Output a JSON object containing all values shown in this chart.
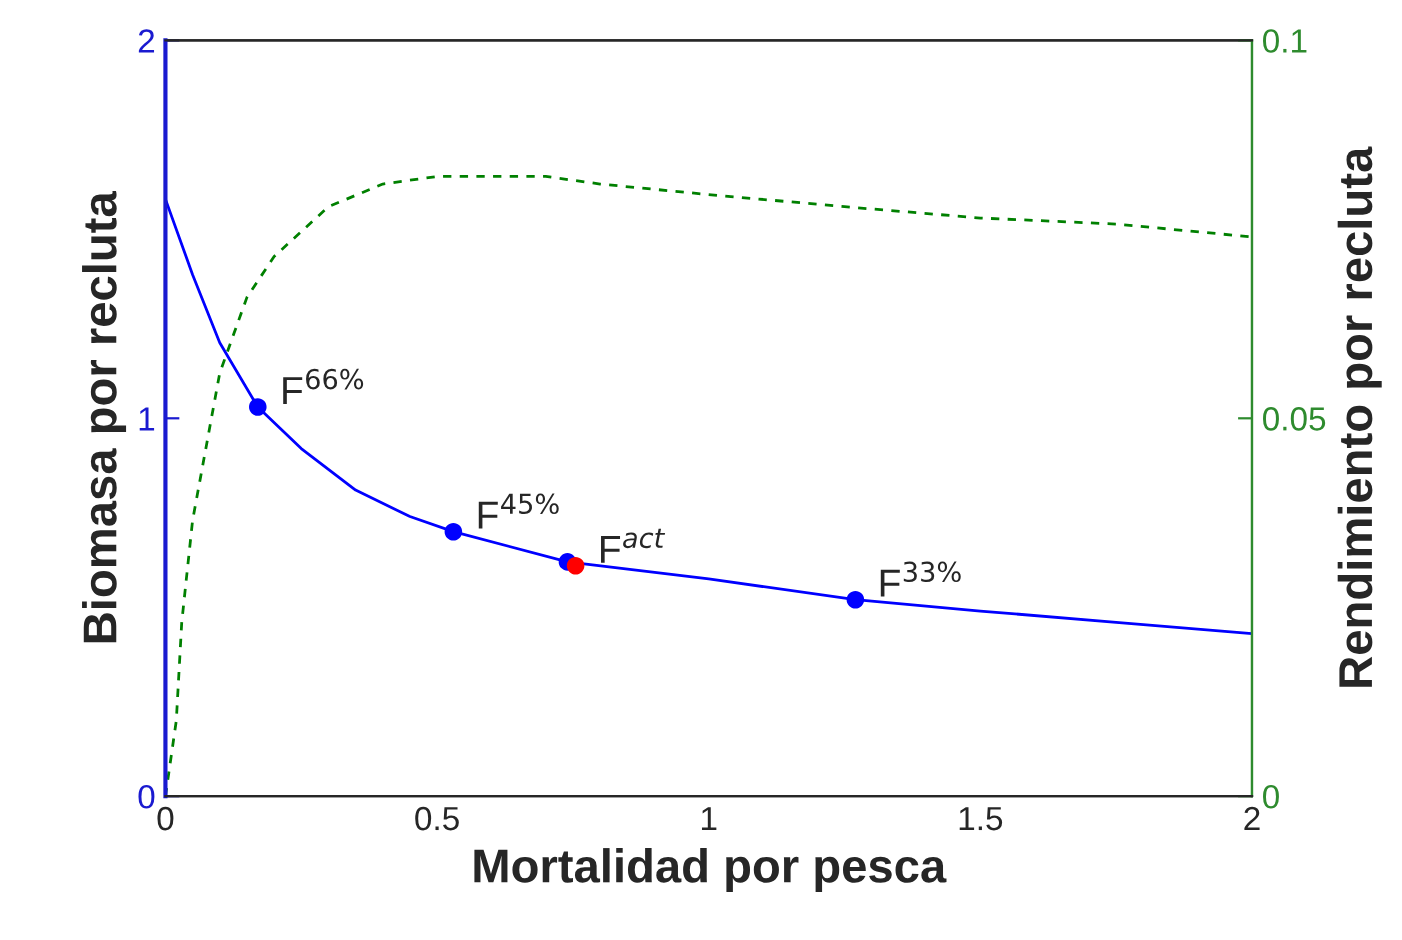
{
  "chart_data": {
    "type": "line",
    "xlabel": "Mortalidad por pesca",
    "ylabel": "Biomasa por recluta",
    "y2label": "Rendimiento por recluta",
    "xlim": [
      0,
      2
    ],
    "xticks": [
      0,
      0.5,
      1,
      1.5,
      2
    ],
    "ylim": [
      0,
      2
    ],
    "yticks": [
      0,
      1,
      2
    ],
    "y2lim": [
      0,
      0.1
    ],
    "y2ticks": [
      0,
      0.05,
      0.1
    ],
    "grid": false,
    "legend": false,
    "series": [
      {
        "color": "#0000ff",
        "line_style": "solid",
        "marker": "none",
        "x": [
          0,
          0.05,
          0.1,
          0.17,
          0.25,
          0.35,
          0.45,
          0.53,
          0.74,
          1.0,
          1.27,
          1.5,
          1.75,
          2.0
        ],
        "values": [
          1.58,
          1.38,
          1.2,
          1.03,
          0.92,
          0.81,
          0.74,
          0.7,
          0.62,
          0.575,
          0.52,
          0.49,
          0.46,
          0.43
        ]
      },
      {
        "axis": "y2",
        "color": "#008000",
        "line_style": "dashed",
        "marker": "none",
        "x": [
          0,
          0.02,
          0.03,
          0.05,
          0.1,
          0.15,
          0.2,
          0.3,
          0.4,
          0.5,
          0.7,
          0.8,
          1.0,
          1.25,
          1.5,
          1.75,
          2.0
        ],
        "values": [
          0,
          0.01,
          0.023,
          0.0365,
          0.056,
          0.066,
          0.0714,
          0.078,
          0.081,
          0.082,
          0.082,
          0.081,
          0.0796,
          0.078,
          0.0765,
          0.0757,
          0.074
        ]
      },
      {
        "type": "scatter",
        "color": "#0000ff",
        "marker": "circle",
        "x": [
          0.17,
          0.53,
          0.74,
          1.27
        ],
        "values": [
          1.03,
          0.7,
          0.62,
          0.52
        ]
      },
      {
        "type": "scatter",
        "color": "#ff0000",
        "marker": "circle",
        "x": [
          0.755
        ],
        "values": [
          0.61
        ]
      }
    ],
    "annotations": [
      {
        "text": "F$^{66%}$",
        "x": 0.17,
        "y": 1.03
      },
      {
        "text": "F$^{45%}$",
        "x": 0.53,
        "y": 0.7
      },
      {
        "text": "F$^{act}$",
        "x": 0.755,
        "y": 0.61
      },
      {
        "text": "F$^{33%}$",
        "x": 1.27,
        "y": 0.52
      }
    ]
  }
}
